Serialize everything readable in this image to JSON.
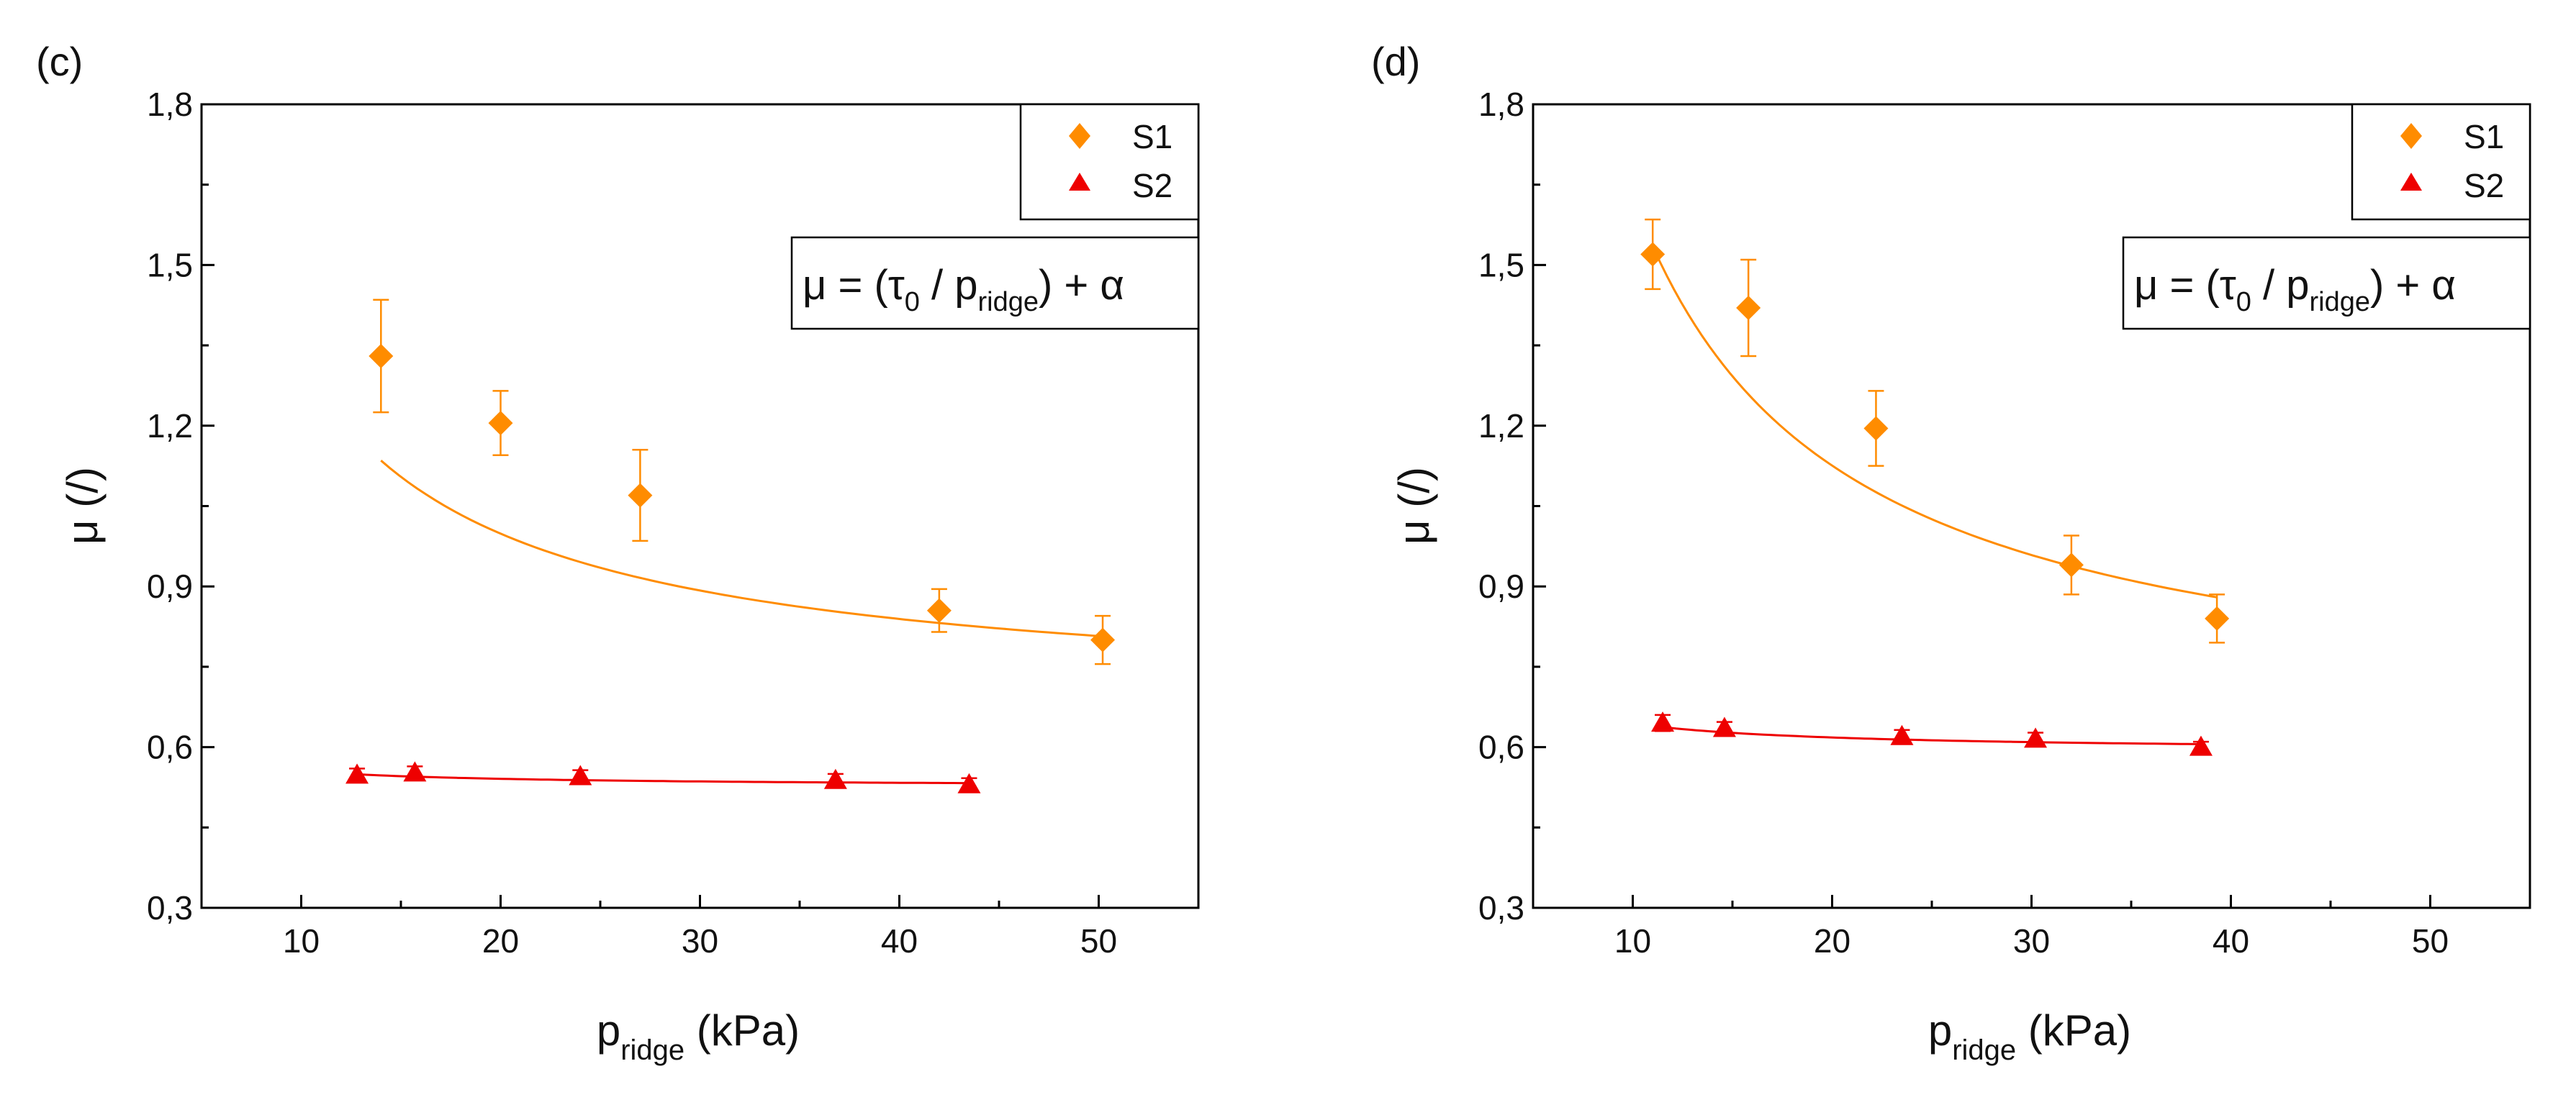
{
  "colors": {
    "s1": "#ff8c00",
    "s2": "#ee0000",
    "axis": "#000000"
  },
  "chart_data": [
    {
      "type": "scatter",
      "panel_label": "(c)",
      "xlim": [
        5,
        55
      ],
      "ylim": [
        0.3,
        1.8
      ],
      "x_ticks": [
        "10",
        "20",
        "30",
        "40",
        "50"
      ],
      "x_tick_values": [
        10,
        20,
        30,
        40,
        50
      ],
      "y_ticks": [
        "0,3",
        "0,6",
        "0,9",
        "1,2",
        "1,5",
        "1,8"
      ],
      "y_tick_values": [
        0.3,
        0.6,
        0.9,
        1.2,
        1.5,
        1.8
      ],
      "xlabel": {
        "main": "p",
        "sub": "ridge",
        "unit": " (kPa)"
      },
      "ylabel": "μ (/)",
      "legend": [
        {
          "name": "S1",
          "marker": "diamond"
        },
        {
          "name": "S2",
          "marker": "triangle"
        }
      ],
      "formula": {
        "p1": "μ = (τ",
        "s1": "0",
        "p2": " / p",
        "s2": "ridge",
        "p3": ") + α"
      },
      "series": [
        {
          "name": "S1",
          "x": [
            14.0,
            20.0,
            27.0,
            42.0,
            50.2
          ],
          "y": [
            1.33,
            1.205,
            1.07,
            0.855,
            0.8
          ],
          "err": [
            0.105,
            0.06,
            0.085,
            0.04,
            0.045
          ],
          "fit": {
            "tau0": 6.37,
            "alpha": 0.68,
            "x_range": [
              14.0,
              50.2
            ]
          }
        },
        {
          "name": "S2",
          "x": [
            12.8,
            15.7,
            24.0,
            36.8,
            43.5
          ],
          "y": [
            0.548,
            0.552,
            0.545,
            0.538,
            0.53
          ],
          "err": [
            0.012,
            0.012,
            0.012,
            0.012,
            0.012
          ],
          "fit": {
            "tau0": 0.297,
            "alpha": 0.526,
            "x_range": [
              12.8,
              43.5
            ]
          }
        }
      ]
    },
    {
      "type": "scatter",
      "panel_label": "(d)",
      "xlim": [
        5,
        55
      ],
      "ylim": [
        0.3,
        1.8
      ],
      "x_ticks": [
        "10",
        "20",
        "30",
        "40",
        "50"
      ],
      "x_tick_values": [
        10,
        20,
        30,
        40,
        50
      ],
      "y_ticks": [
        "0,3",
        "0,6",
        "0,9",
        "1,2",
        "1,5",
        "1,8"
      ],
      "y_tick_values": [
        0.3,
        0.6,
        0.9,
        1.2,
        1.5,
        1.8
      ],
      "xlabel": {
        "main": "p",
        "sub": "ridge",
        "unit": " (kPa)"
      },
      "ylabel": "μ (/)",
      "legend": [
        {
          "name": "S1",
          "marker": "diamond"
        },
        {
          "name": "S2",
          "marker": "triangle"
        }
      ],
      "formula": {
        "p1": "μ = (τ",
        "s1": "0",
        "p2": " / p",
        "s2": "ridge",
        "p3": ") + α"
      },
      "series": [
        {
          "name": "S1",
          "x": [
            11.0,
            15.8,
            22.2,
            32.0,
            39.3
          ],
          "y": [
            1.52,
            1.42,
            1.195,
            0.94,
            0.84
          ],
          "err": [
            0.065,
            0.09,
            0.07,
            0.055,
            0.045
          ],
          "fit": {
            "tau0": 10.01,
            "alpha": 0.625,
            "x_range": [
              11.0,
              39.3
            ]
          }
        },
        {
          "name": "S2",
          "x": [
            11.5,
            14.6,
            23.5,
            30.2,
            38.5
          ],
          "y": [
            0.645,
            0.635,
            0.62,
            0.615,
            0.6
          ],
          "err": [
            0.015,
            0.012,
            0.012,
            0.012,
            0.01
          ],
          "fit": {
            "tau0": 0.52,
            "alpha": 0.592,
            "x_range": [
              11.5,
              38.5
            ]
          }
        }
      ]
    }
  ]
}
